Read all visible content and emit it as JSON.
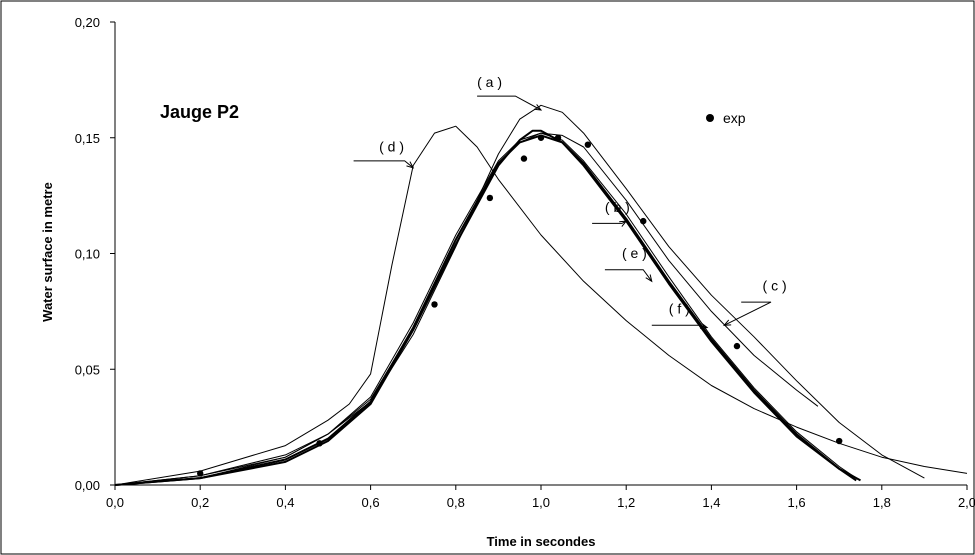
{
  "chart_data": {
    "type": "line",
    "panel_title": "Jauge P2",
    "xlabel": "Time in secondes",
    "ylabel": "Water surface in metre",
    "xlim": [
      0.0,
      2.0
    ],
    "ylim": [
      0.0,
      0.2
    ],
    "x_ticks": [
      "0,0",
      "0,2",
      "0,4",
      "0,6",
      "0,8",
      "1,0",
      "1,2",
      "1,4",
      "1,6",
      "1,8",
      "2,0"
    ],
    "y_ticks": [
      "0,00",
      "0,05",
      "0,10",
      "0,15",
      "0,20"
    ],
    "grid": false,
    "legend_position": "top-right",
    "series": [
      {
        "name": "exp",
        "kind": "points",
        "x": [
          0.2,
          0.48,
          0.75,
          0.88,
          0.96,
          1.0,
          1.04,
          1.11,
          1.24,
          1.46,
          1.7
        ],
        "y": [
          0.005,
          0.018,
          0.078,
          0.124,
          0.141,
          0.15,
          0.15,
          0.147,
          0.114,
          0.06,
          0.019
        ]
      },
      {
        "name": "",
        "label": "( a )",
        "kind": "line",
        "x": [
          0.0,
          0.2,
          0.4,
          0.5,
          0.6,
          0.7,
          0.8,
          0.9,
          0.95,
          1.0,
          1.05,
          1.1,
          1.2,
          1.3,
          1.4,
          1.5,
          1.6,
          1.7,
          1.8,
          1.9
        ],
        "y": [
          0.0,
          0.004,
          0.013,
          0.022,
          0.036,
          0.065,
          0.103,
          0.143,
          0.158,
          0.164,
          0.161,
          0.152,
          0.128,
          0.103,
          0.082,
          0.064,
          0.045,
          0.027,
          0.013,
          0.003
        ]
      },
      {
        "name": "",
        "label": "( b )",
        "kind": "line",
        "x": [
          0.0,
          0.2,
          0.4,
          0.5,
          0.6,
          0.7,
          0.8,
          0.9,
          0.95,
          1.0,
          1.05,
          1.1,
          1.2,
          1.3,
          1.4,
          1.5,
          1.6,
          1.7,
          1.74
        ],
        "y": [
          0.0,
          0.003,
          0.012,
          0.022,
          0.038,
          0.07,
          0.108,
          0.14,
          0.149,
          0.152,
          0.149,
          0.14,
          0.117,
          0.09,
          0.064,
          0.042,
          0.023,
          0.008,
          0.003
        ]
      },
      {
        "name": "",
        "label": "( c )",
        "kind": "line",
        "x": [
          0.0,
          0.2,
          0.4,
          0.5,
          0.6,
          0.7,
          0.8,
          0.9,
          0.95,
          1.0,
          1.05,
          1.1,
          1.2,
          1.3,
          1.4,
          1.5,
          1.6,
          1.65
        ],
        "y": [
          0.0,
          0.004,
          0.012,
          0.022,
          0.037,
          0.068,
          0.106,
          0.139,
          0.148,
          0.152,
          0.151,
          0.146,
          0.123,
          0.097,
          0.075,
          0.056,
          0.041,
          0.034
        ]
      },
      {
        "name": "",
        "label": "( d )",
        "kind": "line",
        "x": [
          0.0,
          0.2,
          0.4,
          0.5,
          0.55,
          0.6,
          0.65,
          0.7,
          0.75,
          0.8,
          0.85,
          0.9,
          1.0,
          1.1,
          1.2,
          1.3,
          1.4,
          1.5,
          1.6,
          1.7,
          1.8,
          1.9,
          2.0
        ],
        "y": [
          0.0,
          0.006,
          0.017,
          0.028,
          0.035,
          0.048,
          0.095,
          0.138,
          0.152,
          0.155,
          0.146,
          0.132,
          0.108,
          0.088,
          0.071,
          0.056,
          0.043,
          0.033,
          0.025,
          0.018,
          0.012,
          0.008,
          0.005
        ]
      },
      {
        "name": "",
        "label": "( e )",
        "kind": "line",
        "x": [
          0.0,
          0.2,
          0.4,
          0.5,
          0.6,
          0.7,
          0.8,
          0.9,
          0.95,
          1.0,
          1.05,
          1.1,
          1.2,
          1.3,
          1.4,
          1.5,
          1.6,
          1.7,
          1.74
        ],
        "y": [
          0.0,
          0.003,
          0.011,
          0.02,
          0.036,
          0.068,
          0.106,
          0.139,
          0.148,
          0.151,
          0.148,
          0.138,
          0.114,
          0.087,
          0.062,
          0.04,
          0.021,
          0.007,
          0.002
        ]
      },
      {
        "name": "",
        "label": "( f )",
        "kind": "line",
        "x": [
          0.0,
          0.2,
          0.4,
          0.5,
          0.6,
          0.7,
          0.8,
          0.9,
          0.95,
          0.98,
          1.0,
          1.05,
          1.1,
          1.2,
          1.3,
          1.4,
          1.5,
          1.6,
          1.7,
          1.75
        ],
        "y": [
          0.0,
          0.003,
          0.01,
          0.019,
          0.035,
          0.067,
          0.104,
          0.138,
          0.149,
          0.153,
          0.153,
          0.148,
          0.139,
          0.115,
          0.088,
          0.063,
          0.041,
          0.022,
          0.007,
          0.002
        ]
      }
    ],
    "annotations": [
      {
        "text": "( a )",
        "x": 0.85,
        "y": 0.172
      },
      {
        "text": "( b )",
        "x": 1.15,
        "y": 0.118
      },
      {
        "text": "( c )",
        "x": 1.52,
        "y": 0.084
      },
      {
        "text": "( d )",
        "x": 0.62,
        "y": 0.144
      },
      {
        "text": "( e )",
        "x": 1.19,
        "y": 0.098
      },
      {
        "text": "( f )",
        "x": 1.3,
        "y": 0.074
      }
    ]
  }
}
